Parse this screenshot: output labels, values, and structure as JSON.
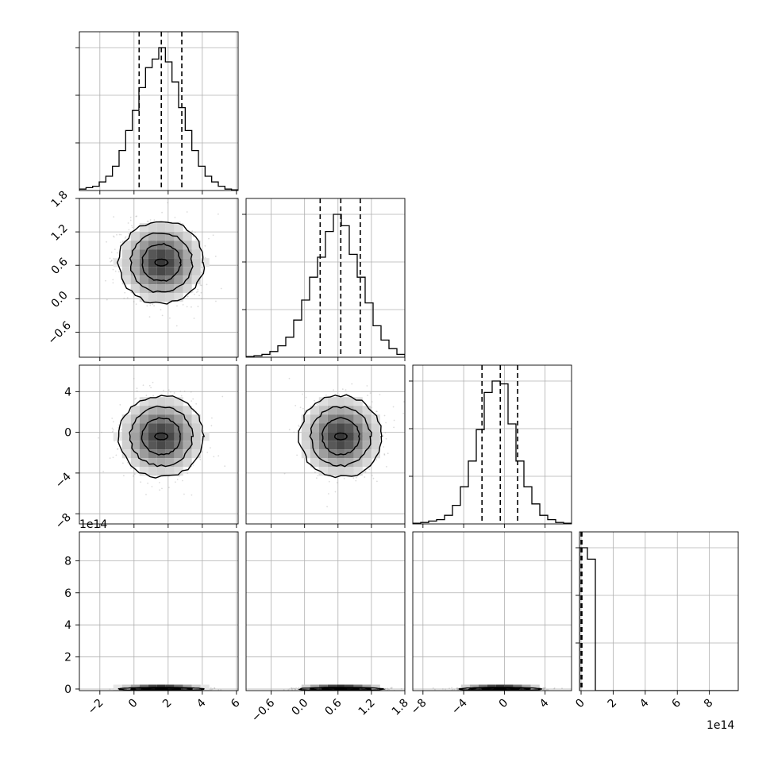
{
  "chart_data": {
    "type": "corner",
    "params": 4,
    "tick_values": [
      [
        -2,
        0,
        2,
        4,
        6
      ],
      [
        -0.6,
        0.0,
        0.6,
        1.2,
        1.8
      ],
      [
        -8,
        -4,
        0,
        4
      ],
      [
        0,
        2,
        4,
        6,
        8
      ]
    ],
    "tick_labels": [
      [
        "−2",
        "0",
        "2",
        "4",
        "6"
      ],
      [
        "−0.6",
        "0.0",
        "0.6",
        "1.2",
        "1.8"
      ],
      [
        "−8",
        "−4",
        "0",
        "4"
      ],
      [
        "0",
        "2",
        "4",
        "6",
        "8"
      ]
    ],
    "axis_ranges": [
      [
        -3.2,
        6.1
      ],
      [
        -1.05,
        1.8
      ],
      [
        -9.0,
        6.6
      ],
      [
        -0.1,
        9.8
      ]
    ],
    "offset_label": "1e14",
    "value_scale_last_param": "1e14",
    "grid": true,
    "quantiles": [
      [
        0.3,
        1.6,
        2.8
      ],
      [
        0.28,
        0.65,
        1.0
      ],
      [
        -2.2,
        -0.4,
        1.3
      ],
      [
        0.0,
        0.01,
        0.05
      ]
    ],
    "hist": [
      {
        "lo": -3.2,
        "hi": 6.1,
        "counts": [
          1,
          2,
          3,
          6,
          10,
          17,
          28,
          42,
          56,
          72,
          86,
          92,
          100,
          90,
          76,
          58,
          42,
          28,
          17,
          10,
          6,
          3,
          1,
          0.5
        ]
      },
      {
        "lo": -1.05,
        "hi": 1.8,
        "counts": [
          0.5,
          1,
          2,
          4,
          8,
          14,
          26,
          40,
          56,
          70,
          88,
          100,
          92,
          72,
          56,
          38,
          22,
          12,
          6,
          2
        ]
      },
      {
        "lo": -9.0,
        "hi": 6.6,
        "counts": [
          0.5,
          1,
          2,
          3,
          6,
          13,
          26,
          44,
          66,
          92,
          100,
          98,
          70,
          44,
          26,
          14,
          6,
          3,
          1,
          0.5
        ]
      },
      {
        "lo": -0.1,
        "hi": 9.8,
        "counts": [
          100,
          92,
          0,
          0,
          0,
          0,
          0,
          0,
          0,
          0,
          0,
          0,
          0,
          0,
          0,
          0,
          0,
          0,
          0,
          0
        ]
      }
    ],
    "centers": [
      1.6,
      0.65,
      -0.4,
      0.0
    ],
    "sigmas": [
      1.25,
      0.37,
      2.0,
      0.05
    ]
  }
}
